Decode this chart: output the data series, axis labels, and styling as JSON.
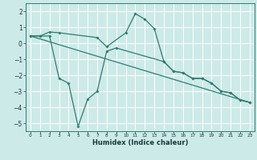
{
  "xlabel": "Humidex (Indice chaleur)",
  "bg_color": "#cceae8",
  "grid_color": "#ffffff",
  "line_color": "#2e7d6e",
  "xlim": [
    -0.5,
    23.5
  ],
  "ylim": [
    -5.5,
    2.5
  ],
  "yticks": [
    -5,
    -4,
    -3,
    -2,
    -1,
    0,
    1,
    2
  ],
  "xticks": [
    0,
    1,
    2,
    3,
    4,
    5,
    6,
    7,
    8,
    9,
    10,
    11,
    12,
    13,
    14,
    15,
    16,
    17,
    18,
    19,
    20,
    21,
    22,
    23
  ],
  "line1_x": [
    0,
    1,
    2,
    3,
    7,
    8,
    10,
    11,
    12,
    13,
    14,
    15,
    16,
    17,
    18,
    19,
    20,
    21,
    22,
    23
  ],
  "line1_y": [
    0.45,
    0.45,
    0.7,
    0.65,
    0.35,
    -0.22,
    0.65,
    1.85,
    1.5,
    0.9,
    -1.15,
    -1.75,
    -1.85,
    -2.2,
    -2.2,
    -2.5,
    -3.0,
    -3.1,
    -3.55,
    -3.7
  ],
  "line2_x": [
    0,
    1,
    2,
    3,
    4,
    5,
    6,
    7,
    8,
    9,
    14,
    15,
    16,
    17,
    18,
    19,
    20,
    21,
    22,
    23
  ],
  "line2_y": [
    0.45,
    0.45,
    0.45,
    -2.2,
    -2.5,
    -5.2,
    -3.5,
    -3.0,
    -0.5,
    -0.3,
    -1.15,
    -1.75,
    -1.85,
    -2.2,
    -2.2,
    -2.5,
    -3.0,
    -3.1,
    -3.55,
    -3.7
  ],
  "line3_x": [
    0,
    23
  ],
  "line3_y": [
    0.45,
    -3.7
  ]
}
